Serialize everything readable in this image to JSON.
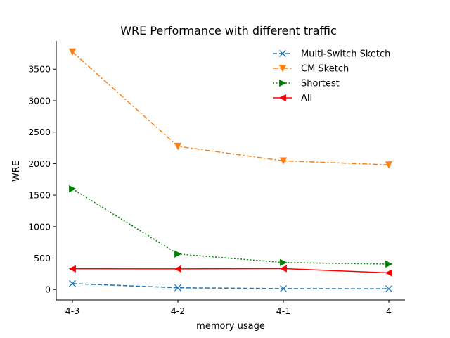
{
  "chart_data": {
    "type": "line",
    "title": "WRE Performance with different traffic",
    "xlabel": "memory usage",
    "ylabel": "WRE",
    "categories": [
      "4-3",
      "4-2",
      "4-1",
      "4"
    ],
    "ylim": [
      -165,
      3950
    ],
    "yticks": [
      0,
      500,
      1000,
      1500,
      2000,
      2500,
      3000,
      3500
    ],
    "grid": false,
    "legend_position": "top-right",
    "series": [
      {
        "name": "Multi-Switch Sketch",
        "values": [
          95,
          28,
          15,
          12
        ],
        "color": "#1f77b4",
        "dash": "dashed",
        "marker": "x"
      },
      {
        "name": "CM Sketch",
        "values": [
          3775,
          2275,
          2045,
          1980
        ],
        "color": "#ff7f0e",
        "dash": "dashdot",
        "marker": "triangle-down"
      },
      {
        "name": "Shortest",
        "values": [
          1600,
          565,
          430,
          405
        ],
        "color": "#008000",
        "dash": "dotted",
        "marker": "triangle-right"
      },
      {
        "name": "All",
        "values": [
          330,
          328,
          333,
          265
        ],
        "color": "#ff0000",
        "dash": "solid",
        "marker": "triangle-left"
      }
    ]
  }
}
